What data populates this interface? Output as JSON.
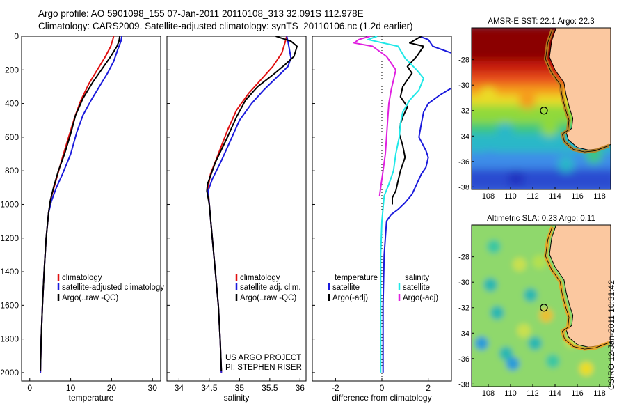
{
  "header": {
    "line1": "Argo profile: AO 5901098_155 07-Jan-2011 20110108_313 32.091S 112.978E",
    "line2": "Climatology: CARS2009. Satellite-adjusted climatology: synTS_20110106.nc (1.2d earlier)"
  },
  "stamp": "CSIRO 12-Jan-2011 10:31:42",
  "colors": {
    "red": "#e01010",
    "blue": "#1a1adc",
    "black": "#000000",
    "magenta": "#e020e0",
    "cyan": "#20e8e8",
    "land": "#fbc8a0"
  },
  "chart_data": [
    {
      "type": "line",
      "id": "temperature",
      "xlabel": "temperature",
      "xlim": [
        -2,
        32
      ],
      "ylim": [
        2050,
        0
      ],
      "xticks": [
        0,
        10,
        20,
        30
      ],
      "yticks": [
        0,
        200,
        400,
        600,
        800,
        1000,
        1200,
        1400,
        1600,
        1800,
        2000
      ],
      "legend": [
        "climatology",
        "satellite-adjusted climatology",
        "Argo(..raw -QC)"
      ],
      "series": [
        {
          "name": "climatology",
          "color": "red",
          "points": [
            [
              20.5,
              0
            ],
            [
              20.3,
              20
            ],
            [
              19.8,
              60
            ],
            [
              18.5,
              120
            ],
            [
              16.5,
              200
            ],
            [
              14.5,
              280
            ],
            [
              12.5,
              380
            ],
            [
              11,
              480
            ],
            [
              9.5,
              600
            ],
            [
              8,
              720
            ],
            [
              6.5,
              850
            ],
            [
              5.2,
              960
            ],
            [
              4.6,
              1050
            ],
            [
              4,
              1200
            ],
            [
              3.5,
              1400
            ],
            [
              3.1,
              1600
            ],
            [
              2.8,
              1800
            ],
            [
              2.6,
              2000
            ]
          ]
        },
        {
          "name": "satellite-adjusted climatology",
          "color": "blue",
          "points": [
            [
              22.5,
              0
            ],
            [
              22.3,
              30
            ],
            [
              21.5,
              80
            ],
            [
              20.5,
              150
            ],
            [
              19,
              220
            ],
            [
              17,
              300
            ],
            [
              15,
              380
            ],
            [
              13,
              470
            ],
            [
              11.5,
              570
            ],
            [
              10,
              700
            ],
            [
              8,
              820
            ],
            [
              6.5,
              900
            ],
            [
              5.3,
              980
            ],
            [
              4.6,
              1050
            ],
            [
              4,
              1200
            ],
            [
              3.5,
              1400
            ],
            [
              3.1,
              1600
            ],
            [
              2.8,
              1800
            ],
            [
              2.6,
              2000
            ]
          ]
        },
        {
          "name": "Argo(..raw -QC)",
          "color": "black",
          "points": [
            [
              22,
              0
            ],
            [
              21.8,
              30
            ],
            [
              21.3,
              60
            ],
            [
              19.8,
              120
            ],
            [
              17.5,
              200
            ],
            [
              15.5,
              270
            ],
            [
              13,
              370
            ],
            [
              11.2,
              470
            ],
            [
              10,
              580
            ],
            [
              8.5,
              700
            ],
            [
              7,
              800
            ],
            [
              5.8,
              900
            ],
            [
              5,
              980
            ],
            [
              4.6,
              1050
            ],
            [
              4,
              1200
            ],
            [
              3.5,
              1400
            ],
            [
              3.1,
              1600
            ],
            [
              2.8,
              1800
            ],
            [
              2.6,
              1990
            ]
          ]
        }
      ]
    },
    {
      "type": "line",
      "id": "salinity",
      "xlabel": "salinity",
      "xlim": [
        33.8,
        36.1
      ],
      "ylim": [
        2050,
        0
      ],
      "xticks": [
        34,
        34.5,
        35,
        35.5,
        36
      ],
      "legend": [
        "climatology",
        "satellite adj. clim.",
        "Argo(..raw -QC)"
      ],
      "annotations": [
        "US ARGO PROJECT",
        "PI: STEPHEN RISER"
      ],
      "series": [
        {
          "name": "climatology",
          "color": "red",
          "points": [
            [
              35.78,
              0
            ],
            [
              35.75,
              40
            ],
            [
              35.7,
              100
            ],
            [
              35.55,
              180
            ],
            [
              35.35,
              260
            ],
            [
              35.15,
              340
            ],
            [
              34.95,
              440
            ],
            [
              34.8,
              560
            ],
            [
              34.65,
              700
            ],
            [
              34.52,
              820
            ],
            [
              34.48,
              900
            ],
            [
              34.5,
              1000
            ],
            [
              34.55,
              1200
            ],
            [
              34.6,
              1400
            ],
            [
              34.65,
              1600
            ],
            [
              34.68,
              1800
            ],
            [
              34.7,
              2000
            ]
          ]
        },
        {
          "name": "satellite adj. clim.",
          "color": "blue",
          "points": [
            [
              35.78,
              0
            ],
            [
              35.8,
              30
            ],
            [
              35.82,
              70
            ],
            [
              35.85,
              130
            ],
            [
              35.8,
              180
            ],
            [
              35.6,
              250
            ],
            [
              35.4,
              320
            ],
            [
              35.2,
              400
            ],
            [
              35.0,
              500
            ],
            [
              34.85,
              620
            ],
            [
              34.7,
              740
            ],
            [
              34.55,
              850
            ],
            [
              34.48,
              920
            ],
            [
              34.5,
              1000
            ],
            [
              34.55,
              1200
            ],
            [
              34.6,
              1400
            ],
            [
              34.65,
              1600
            ],
            [
              34.68,
              1800
            ],
            [
              34.7,
              2000
            ]
          ]
        },
        {
          "name": "Argo(..raw -QC)",
          "color": "black",
          "points": [
            [
              35.6,
              0
            ],
            [
              35.85,
              30
            ],
            [
              35.95,
              60
            ],
            [
              35.9,
              120
            ],
            [
              35.75,
              170
            ],
            [
              35.55,
              230
            ],
            [
              35.3,
              300
            ],
            [
              35.1,
              380
            ],
            [
              34.95,
              480
            ],
            [
              34.8,
              600
            ],
            [
              34.6,
              750
            ],
            [
              34.47,
              880
            ],
            [
              34.46,
              920
            ],
            [
              34.5,
              1000
            ],
            [
              34.55,
              1200
            ],
            [
              34.6,
              1400
            ],
            [
              34.65,
              1600
            ],
            [
              34.68,
              1800
            ],
            [
              34.7,
              1990
            ]
          ]
        }
      ]
    },
    {
      "type": "line",
      "id": "difference",
      "xlabel": "difference from climatology",
      "xlim": [
        -3,
        3
      ],
      "ylim": [
        2050,
        0
      ],
      "xticks": [
        -2,
        0,
        2
      ],
      "legend": [
        "temperature",
        "satellite",
        "Argo(-adj)",
        "salinity",
        "satellite",
        "Argo(-adj)"
      ],
      "series": [
        {
          "name": "satellite",
          "group": "temperature",
          "color": "blue",
          "points": [
            [
              1.6,
              0
            ],
            [
              2.0,
              20
            ],
            [
              2.2,
              60
            ],
            [
              3.0,
              100
            ],
            [
              3.5,
              200
            ],
            [
              3.1,
              300
            ],
            [
              2.5,
              350
            ],
            [
              2.0,
              400
            ],
            [
              1.8,
              450
            ],
            [
              1.7,
              520
            ],
            [
              1.6,
              600
            ],
            [
              1.9,
              680
            ],
            [
              2.0,
              720
            ],
            [
              1.9,
              780
            ],
            [
              1.7,
              820
            ],
            [
              1.5,
              880
            ],
            [
              1.3,
              940
            ],
            [
              1.0,
              990
            ],
            [
              0.7,
              1030
            ],
            [
              0.4,
              1060
            ],
            [
              0.2,
              1100
            ],
            [
              0.1,
              1300
            ],
            [
              0.05,
              1600
            ],
            [
              0.05,
              2000
            ]
          ]
        },
        {
          "name": "Argo(-adj)",
          "group": "temperature",
          "color": "black",
          "points": [
            [
              1.7,
              0
            ],
            [
              1.2,
              40
            ],
            [
              1.8,
              60
            ],
            [
              1.5,
              120
            ],
            [
              1.1,
              180
            ],
            [
              1.3,
              220
            ],
            [
              0.9,
              300
            ],
            [
              0.8,
              360
            ],
            [
              1.1,
              420
            ],
            [
              0.9,
              480
            ],
            [
              0.8,
              520
            ],
            [
              0.75,
              580
            ],
            [
              0.9,
              650
            ],
            [
              1.0,
              720
            ],
            [
              0.8,
              800
            ],
            [
              0.7,
              860
            ],
            [
              0.6,
              920
            ],
            [
              0.45,
              960
            ],
            [
              0.45,
              1000
            ]
          ]
        },
        {
          "name": "satellite",
          "group": "salinity",
          "color": "cyan",
          "points": [
            [
              -0.2,
              0
            ],
            [
              -0.6,
              20
            ],
            [
              0.7,
              60
            ],
            [
              1.0,
              130
            ],
            [
              1.5,
              200
            ],
            [
              1.8,
              250
            ],
            [
              1.6,
              320
            ],
            [
              1.2,
              380
            ],
            [
              0.9,
              450
            ],
            [
              0.8,
              520
            ],
            [
              0.75,
              600
            ],
            [
              0.6,
              700
            ],
            [
              0.5,
              800
            ],
            [
              0.3,
              880
            ],
            [
              0.1,
              950
            ],
            [
              0,
              1100
            ],
            [
              -0.05,
              1300
            ],
            [
              -0.05,
              1600
            ],
            [
              -0.05,
              2000
            ]
          ]
        },
        {
          "name": "Argo(-adj)",
          "group": "salinity",
          "color": "magenta",
          "points": [
            [
              -0.5,
              0
            ],
            [
              -1.0,
              20
            ],
            [
              -1.2,
              40
            ],
            [
              -0.4,
              60
            ],
            [
              0.2,
              120
            ],
            [
              0.6,
              200
            ],
            [
              0.5,
              260
            ],
            [
              0.4,
              320
            ],
            [
              0.3,
              400
            ],
            [
              0.25,
              500
            ],
            [
              0.2,
              600
            ],
            [
              0.15,
              700
            ],
            [
              0.05,
              800
            ],
            [
              -0.05,
              900
            ],
            [
              -0.1,
              950
            ]
          ]
        }
      ]
    },
    {
      "type": "heatmap",
      "id": "sst-map",
      "title": "AMSR-E SST: 22.1  Argo: 22.3",
      "xticks": [
        108,
        110,
        112,
        114,
        116,
        118
      ],
      "yticks": [
        -28,
        -30,
        -32,
        -34,
        -36,
        -38
      ],
      "xlim": [
        106.5,
        119
      ],
      "ylim": [
        -38.2,
        -25.5
      ],
      "marker": [
        113,
        -32
      ]
    },
    {
      "type": "heatmap",
      "id": "sla-map",
      "title": "Altimetric SLA: 0.23  Argo: 0.11",
      "xticks": [
        108,
        110,
        112,
        114,
        116,
        118
      ],
      "yticks": [
        -28,
        -30,
        -32,
        -34,
        -36,
        -38
      ],
      "xlim": [
        106.5,
        119
      ],
      "ylim": [
        -38.2,
        -25.5
      ],
      "marker": [
        113,
        -32
      ]
    }
  ]
}
